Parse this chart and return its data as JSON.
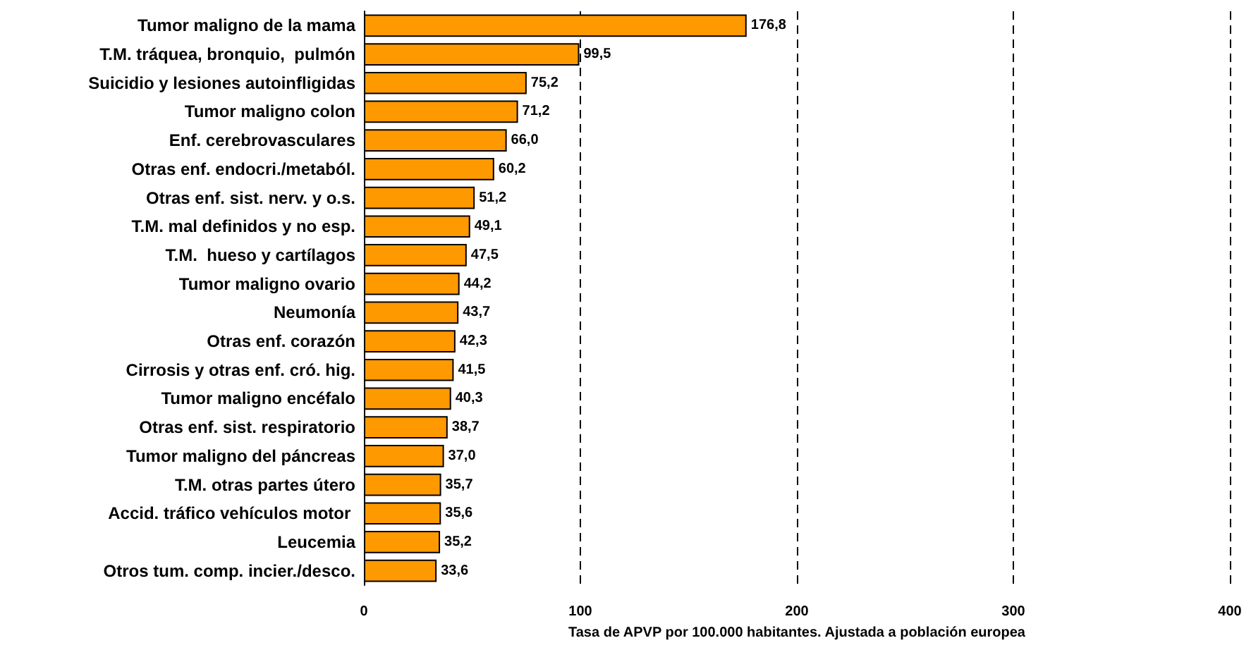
{
  "chart_data": {
    "type": "bar",
    "orientation": "horizontal",
    "xlabel": "Tasa de APVP por 100.000 habitantes. Ajustada a población europea",
    "categories": [
      "Tumor maligno de la mama",
      "T.M. tráquea, bronquio,  pulmón",
      "Suicidio y lesiones autoinfligidas",
      "Tumor maligno colon",
      "Enf. cerebrovasculares",
      "Otras enf. endocri./metaból.",
      "Otras enf. sist. nerv. y o.s.",
      "T.M. mal definidos y no esp.",
      "T.M.  hueso y cartílagos",
      "Tumor maligno ovario",
      "Neumonía",
      "Otras enf. corazón",
      "Cirrosis y otras enf. cró. hig.",
      "Tumor maligno encéfalo",
      "Otras enf. sist. respiratorio",
      "Tumor maligno del páncreas",
      "T.M. otras partes útero",
      "Accid. tráfico vehículos motor ",
      "Leucemia",
      "Otros tum. comp. incier./desco."
    ],
    "values": [
      176.8,
      99.5,
      75.2,
      71.2,
      66.0,
      60.2,
      51.2,
      49.1,
      47.5,
      44.2,
      43.7,
      42.3,
      41.5,
      40.3,
      38.7,
      37.0,
      35.7,
      35.6,
      35.2,
      33.6
    ],
    "value_labels": [
      "176,8",
      "99,5",
      "75,2",
      "71,2",
      "66,0",
      "60,2",
      "51,2",
      "49,1",
      "47,5",
      "44,2",
      "43,7",
      "42,3",
      "41,5",
      "40,3",
      "38,7",
      "37,0",
      "35,7",
      "35,6",
      "35,2",
      "33,6"
    ],
    "color": "#ff9900",
    "xlim": [
      0,
      400
    ],
    "xticks": [
      0,
      100,
      200,
      300,
      400
    ],
    "grid": "x"
  }
}
